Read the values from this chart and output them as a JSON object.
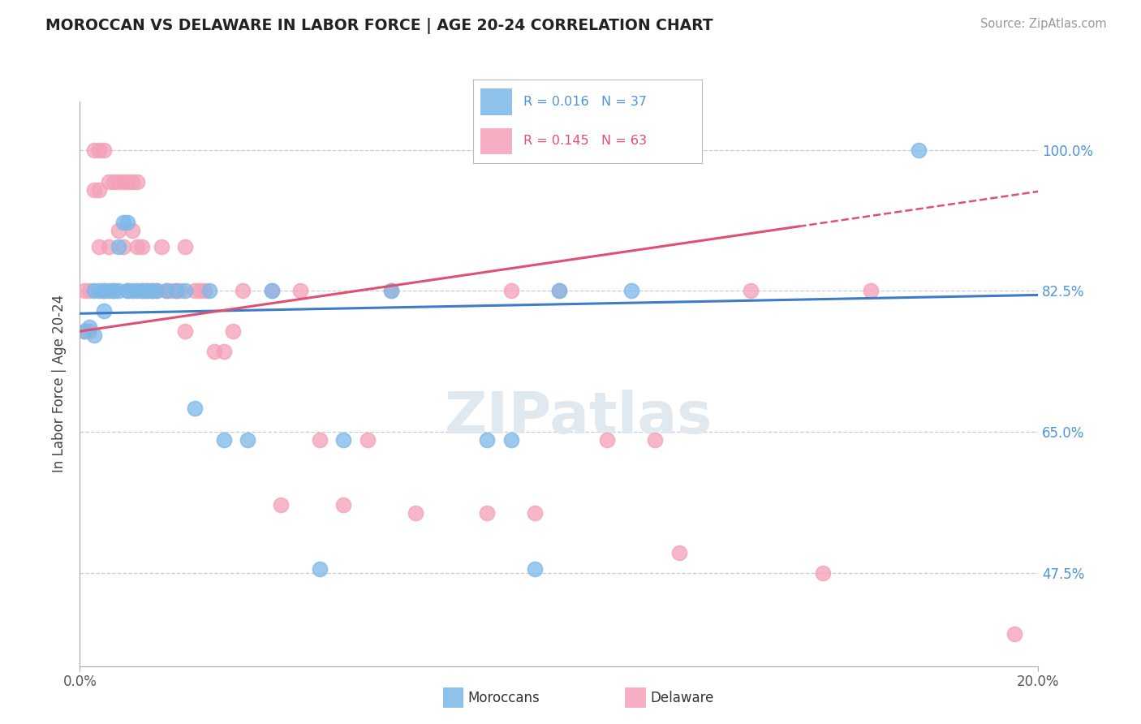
{
  "title": "MOROCCAN VS DELAWARE IN LABOR FORCE | AGE 20-24 CORRELATION CHART",
  "source": "Source: ZipAtlas.com",
  "ylabel": "In Labor Force | Age 20-24",
  "xlim": [
    0.0,
    0.2
  ],
  "ylim": [
    0.36,
    1.06
  ],
  "yticks": [
    0.475,
    0.65,
    0.825,
    1.0
  ],
  "yticklabels": [
    "47.5%",
    "65.0%",
    "82.5%",
    "100.0%"
  ],
  "blue_color": "#7bb8e8",
  "pink_color": "#f4a0b8",
  "blue_line_color": "#3d7cc9",
  "pink_line_color": "#e05070",
  "watermark_text": "ZIPatlas",
  "blue_scatter_x": [
    0.001,
    0.002,
    0.003,
    0.003,
    0.004,
    0.005,
    0.005,
    0.006,
    0.007,
    0.008,
    0.008,
    0.009,
    0.01,
    0.01,
    0.011,
    0.012,
    0.013,
    0.014,
    0.015,
    0.016,
    0.018,
    0.02,
    0.022,
    0.024,
    0.027,
    0.03,
    0.035,
    0.04,
    0.05,
    0.055,
    0.065,
    0.085,
    0.09,
    0.095,
    0.1,
    0.115,
    0.175
  ],
  "blue_scatter_y": [
    0.775,
    0.78,
    0.825,
    0.77,
    0.825,
    0.8,
    0.825,
    0.825,
    0.825,
    0.88,
    0.825,
    0.91,
    0.825,
    0.91,
    0.825,
    0.825,
    0.825,
    0.825,
    0.825,
    0.825,
    0.825,
    0.825,
    0.825,
    0.68,
    0.825,
    0.64,
    0.64,
    0.825,
    0.48,
    0.64,
    0.825,
    0.64,
    0.64,
    0.48,
    0.825,
    0.825,
    1.0
  ],
  "pink_scatter_x": [
    0.001,
    0.001,
    0.002,
    0.002,
    0.003,
    0.003,
    0.004,
    0.004,
    0.004,
    0.005,
    0.005,
    0.006,
    0.006,
    0.007,
    0.007,
    0.008,
    0.008,
    0.009,
    0.009,
    0.01,
    0.01,
    0.011,
    0.011,
    0.012,
    0.012,
    0.013,
    0.013,
    0.014,
    0.015,
    0.016,
    0.017,
    0.018,
    0.019,
    0.02,
    0.021,
    0.022,
    0.022,
    0.024,
    0.025,
    0.026,
    0.028,
    0.03,
    0.032,
    0.034,
    0.04,
    0.042,
    0.046,
    0.05,
    0.055,
    0.06,
    0.065,
    0.07,
    0.085,
    0.09,
    0.095,
    0.1,
    0.11,
    0.12,
    0.125,
    0.14,
    0.155,
    0.165,
    0.195
  ],
  "pink_scatter_y": [
    0.825,
    0.775,
    0.825,
    0.775,
    1.0,
    0.95,
    1.0,
    0.95,
    0.88,
    0.825,
    1.0,
    0.88,
    0.96,
    0.825,
    0.96,
    0.96,
    0.9,
    0.96,
    0.88,
    0.96,
    0.825,
    0.96,
    0.9,
    0.96,
    0.88,
    0.88,
    0.825,
    0.825,
    0.825,
    0.825,
    0.88,
    0.825,
    0.825,
    0.825,
    0.825,
    0.88,
    0.775,
    0.825,
    0.825,
    0.825,
    0.75,
    0.75,
    0.775,
    0.825,
    0.825,
    0.56,
    0.825,
    0.64,
    0.56,
    0.64,
    0.825,
    0.55,
    0.55,
    0.825,
    0.55,
    0.825,
    0.64,
    0.64,
    0.5,
    0.825,
    0.475,
    0.825,
    0.4
  ]
}
